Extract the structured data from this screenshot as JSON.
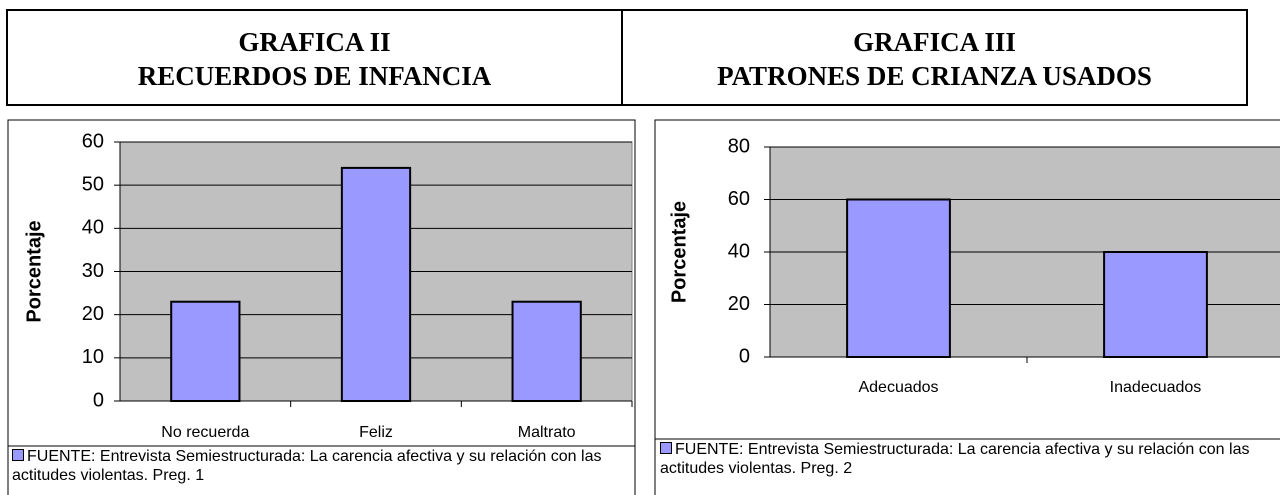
{
  "chart_data": [
    {
      "type": "bar",
      "title": [
        "GRAFICA II",
        "RECUERDOS DE INFANCIA"
      ],
      "ylabel": "Porcentaje",
      "categories": [
        "No recuerda",
        "Feliz",
        "Maltrato"
      ],
      "series": [
        {
          "name": "FUENTE: Entrevista Semiestructurada: La carencia afectiva y su relación con las actitudes violentas. Preg. 1",
          "color": "#9999ff",
          "values": [
            23,
            54,
            23
          ]
        }
      ],
      "ylim": [
        0,
        60
      ],
      "yticks": [
        0,
        10,
        20,
        30,
        40,
        50,
        60
      ],
      "grid": true,
      "legend": "bottom"
    },
    {
      "type": "bar",
      "title": [
        "GRAFICA III",
        "PATRONES DE CRIANZA USADOS"
      ],
      "ylabel": "Porcentaje",
      "categories": [
        "Adecuados",
        "Inadecuados"
      ],
      "series": [
        {
          "name": "FUENTE: Entrevista Semiestructurada: La carencia afectiva y su relación con las actitudes violentas. Preg. 2",
          "color": "#9999ff",
          "values": [
            60,
            40
          ]
        }
      ],
      "ylim": [
        0,
        80
      ],
      "yticks": [
        0,
        20,
        40,
        60,
        80
      ],
      "grid": true,
      "legend": "bottom"
    }
  ]
}
